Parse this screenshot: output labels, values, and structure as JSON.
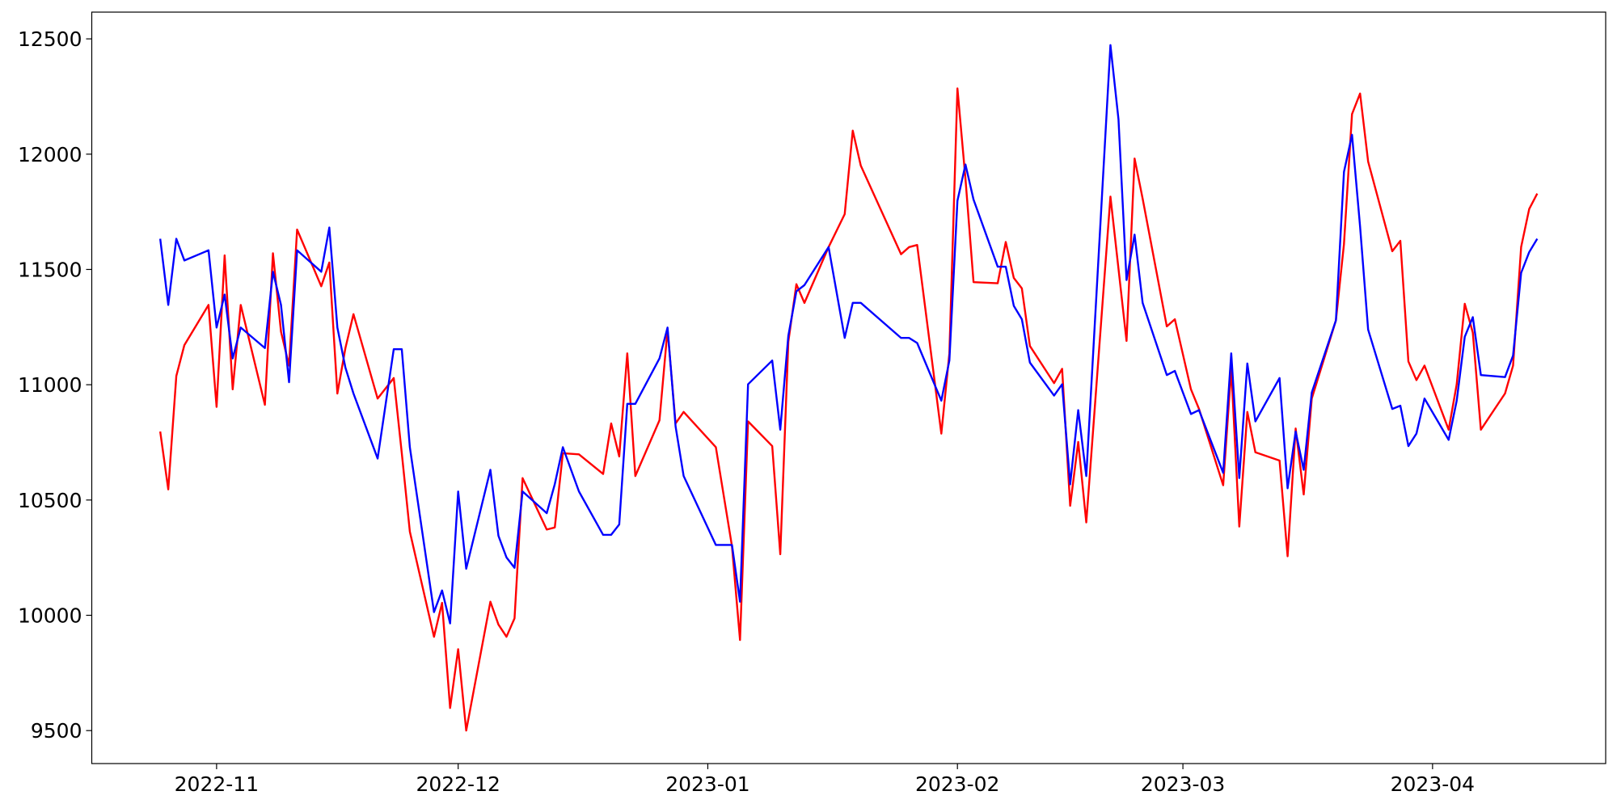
{
  "chart_data": {
    "type": "line",
    "x": [
      19290,
      19291,
      19292,
      19293,
      19296,
      19297,
      19298,
      19299,
      19300,
      19303,
      19304,
      19305,
      19306,
      19307,
      19310,
      19311,
      19312,
      19313,
      19314,
      19317,
      19319,
      19320,
      19321,
      19324,
      19325,
      19326,
      19327,
      19328,
      19331,
      19332,
      19333,
      19334,
      19335,
      19338,
      19339,
      19340,
      19342,
      19345,
      19346,
      19347,
      19348,
      19349,
      19352,
      19353,
      19354,
      19355,
      19359,
      19361,
      19362,
      19363,
      19366,
      19367,
      19368,
      19369,
      19370,
      19373,
      19375,
      19376,
      19377,
      19382,
      19383,
      19384,
      19387,
      19388,
      19389,
      19390,
      19391,
      19394,
      19395,
      19396,
      19397,
      19398,
      19401,
      19402,
      19403,
      19404,
      19405,
      19408,
      19409,
      19410,
      19411,
      19412,
      19415,
      19416,
      19418,
      19419,
      19422,
      19423,
      19424,
      19425,
      19426,
      19429,
      19430,
      19431,
      19432,
      19433,
      19436,
      19437,
      19438,
      19439,
      19440,
      19443,
      19444,
      19445,
      19446,
      19447,
      19450,
      19451,
      19452,
      19453,
      19454,
      19457,
      19458,
      19459,
      19460,
      19461
    ],
    "series": [
      {
        "color": "#ff0000",
        "values": [
          10797,
          10546,
          11038,
          11172,
          11346,
          10904,
          11561,
          10980,
          11346,
          10913,
          11570,
          11230,
          11083,
          11673,
          11427,
          11530,
          10962,
          11159,
          11306,
          10940,
          11029,
          10703,
          10363,
          9907,
          10054,
          9598,
          9853,
          9500,
          10059,
          9960,
          9907,
          9987,
          10595,
          10372,
          10381,
          10703,
          10698,
          10613,
          10832,
          10689,
          11136,
          10604,
          10846,
          11239,
          10832,
          10882,
          10729,
          10300,
          9893,
          10841,
          10734,
          10265,
          11186,
          11436,
          11355,
          11597,
          11740,
          12102,
          11950,
          11566,
          11597,
          11606,
          10788,
          11136,
          12285,
          11892,
          11445,
          11440,
          11619,
          11463,
          11418,
          11168,
          11007,
          11069,
          10475,
          10752,
          10403,
          11816,
          11503,
          11190,
          11981,
          11807,
          11253,
          11284,
          10980,
          10895,
          10564,
          11069,
          10385,
          10882,
          10707,
          10671,
          10256,
          10810,
          10524,
          10940,
          11279,
          11610,
          12174,
          12263,
          11968,
          11579,
          11624,
          11101,
          11020,
          11083,
          10805,
          11002,
          11351,
          11226,
          10805,
          10962,
          11083,
          11597,
          11762,
          11829
        ]
      },
      {
        "color": "#0000ff",
        "values": [
          11633,
          11346,
          11633,
          11539,
          11583,
          11248,
          11391,
          11114,
          11248,
          11159,
          11490,
          11346,
          11011,
          11583,
          11490,
          11682,
          11248,
          11074,
          10962,
          10680,
          11154,
          11154,
          10729,
          10014,
          10108,
          9965,
          10537,
          10202,
          10631,
          10345,
          10251,
          10206,
          10537,
          10443,
          10569,
          10729,
          10537,
          10349,
          10349,
          10394,
          10917,
          10917,
          11114,
          11248,
          10819,
          10604,
          10305,
          10305,
          10059,
          11002,
          11105,
          10805,
          11212,
          11405,
          11432,
          11597,
          11203,
          11355,
          11355,
          11203,
          11203,
          11181,
          10931,
          11105,
          11798,
          11955,
          11803,
          11512,
          11512,
          11342,
          11284,
          11096,
          10953,
          11002,
          10568,
          10890,
          10604,
          12473,
          12151,
          11454,
          11651,
          11355,
          11042,
          11060,
          10873,
          10890,
          10618,
          11136,
          10595,
          11092,
          10841,
          11029,
          10551,
          10797,
          10631,
          10966,
          11279,
          11923,
          12084,
          11686,
          11239,
          10895,
          10909,
          10734,
          10788,
          10940,
          10761,
          10931,
          11208,
          11293,
          11042,
          11033,
          11127,
          11485,
          11575,
          11633
        ]
      }
    ],
    "xlim": [
      19281.5,
      19469.5
    ],
    "xticks": [
      {
        "value": 19297,
        "label": "2022-11"
      },
      {
        "value": 19327,
        "label": "2022-12"
      },
      {
        "value": 19358,
        "label": "2023-01"
      },
      {
        "value": 19389,
        "label": "2023-02"
      },
      {
        "value": 19417,
        "label": "2023-03"
      },
      {
        "value": 19448,
        "label": "2023-04"
      }
    ],
    "ylim": [
      9357,
      12616
    ],
    "yticks": [
      9500,
      10000,
      10500,
      11000,
      11500,
      12000,
      12500
    ],
    "grid": false
  }
}
